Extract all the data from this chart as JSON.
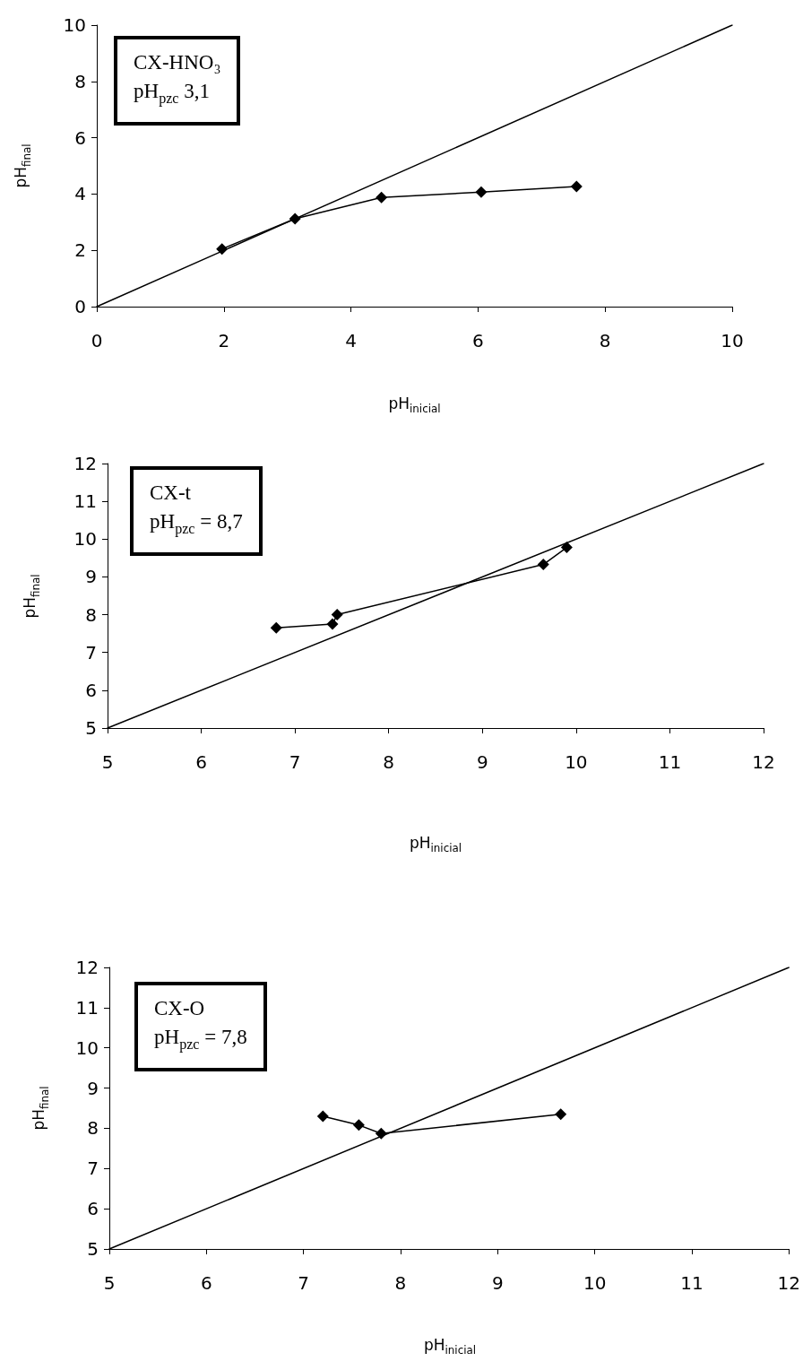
{
  "chart_data": [
    {
      "type": "line",
      "xlabel": "pH$_{inicial}$",
      "ylabel": "pH$_{final}$",
      "annotations": [
        "CX-HNO₃",
        "pH$_{pzc}$  3,1"
      ],
      "xlim": [
        0,
        10
      ],
      "ylim": [
        0,
        10
      ],
      "xticks": [
        0,
        2,
        4,
        6,
        8,
        10
      ],
      "yticks": [
        0,
        2,
        4,
        6,
        8,
        10
      ],
      "grid": false,
      "marker": "diamond",
      "line_style": "solid",
      "series": [
        {
          "color": "#000000",
          "x": [
            1.97,
            3.12,
            4.48,
            6.05,
            7.55
          ],
          "values": [
            2.05,
            3.12,
            3.88,
            4.07,
            4.27
          ]
        },
        {
          "color": "#000000",
          "marker": "none",
          "x": [
            0,
            10
          ],
          "values": [
            0,
            10
          ]
        }
      ]
    },
    {
      "type": "line",
      "xlabel": "pH$_{inicial}$",
      "ylabel": "pH$_{final}$",
      "annotations": [
        "CX-t",
        "pH$_{pzc}$ = 8,7"
      ],
      "xlim": [
        5,
        12
      ],
      "ylim": [
        5,
        12
      ],
      "xticks": [
        5,
        6,
        7,
        8,
        9,
        10,
        11,
        12
      ],
      "yticks": [
        5,
        6,
        7,
        8,
        9,
        10,
        11,
        12
      ],
      "grid": false,
      "marker": "diamond",
      "line_style": "solid",
      "series": [
        {
          "color": "#000000",
          "x": [
            6.8,
            7.4,
            7.45,
            9.65,
            9.9
          ],
          "values": [
            7.65,
            7.75,
            8.0,
            9.33,
            9.78
          ]
        },
        {
          "color": "#000000",
          "marker": "none",
          "x": [
            5,
            12
          ],
          "values": [
            5,
            12
          ]
        }
      ]
    },
    {
      "type": "line",
      "xlabel": "pH$_{inicial}$",
      "ylabel": "pH$_{final}$",
      "annotations": [
        "CX-O",
        "pH$_{pzc}$ = 7,8"
      ],
      "xlim": [
        5,
        12
      ],
      "ylim": [
        5,
        12
      ],
      "xticks": [
        5,
        6,
        7,
        8,
        9,
        10,
        11,
        12
      ],
      "yticks": [
        5,
        6,
        7,
        8,
        9,
        10,
        11,
        12
      ],
      "grid": false,
      "marker": "diamond",
      "line_style": "solid",
      "series": [
        {
          "color": "#000000",
          "x": [
            7.2,
            7.57,
            7.8,
            9.65
          ],
          "values": [
            8.3,
            8.08,
            7.87,
            8.35
          ]
        },
        {
          "color": "#000000",
          "marker": "none",
          "x": [
            5,
            12
          ],
          "values": [
            5,
            12
          ]
        }
      ]
    }
  ]
}
